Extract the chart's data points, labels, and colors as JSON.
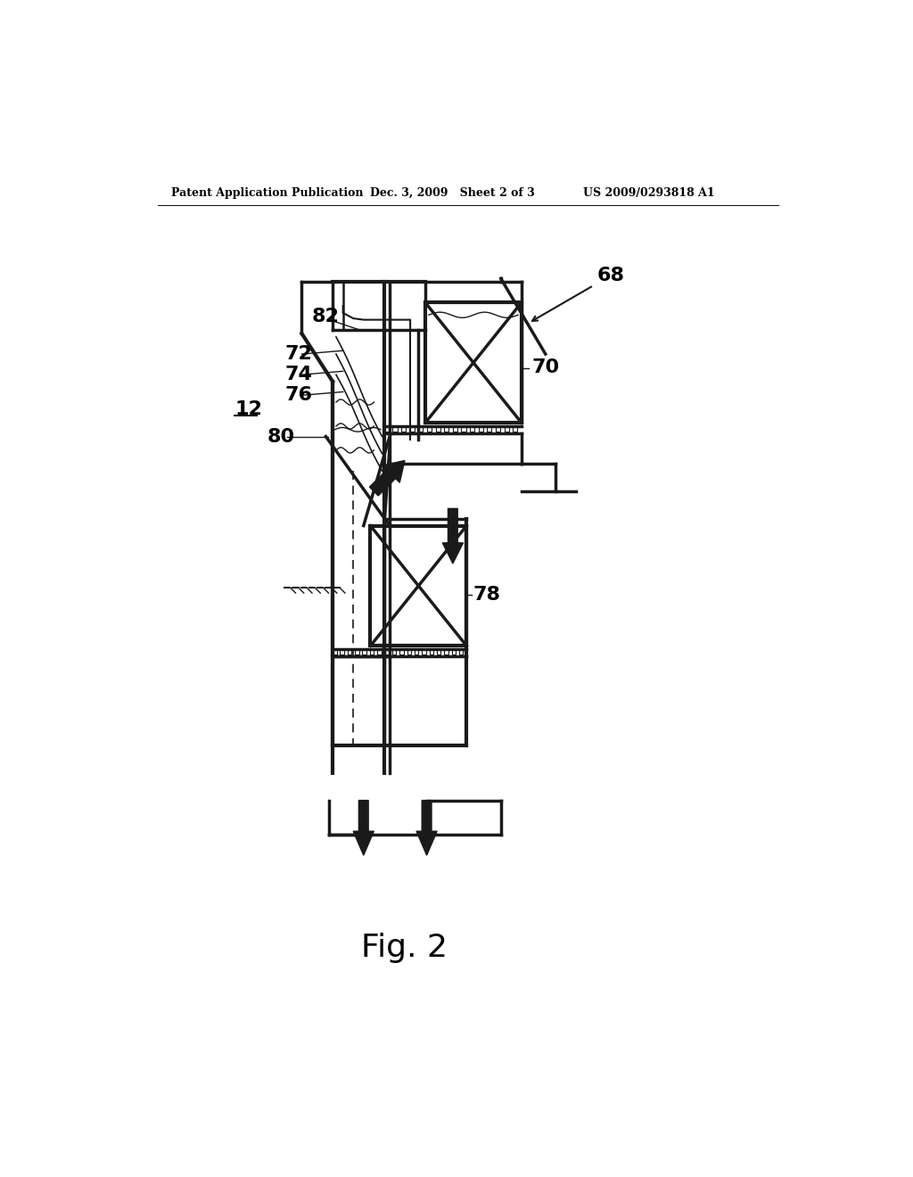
{
  "bg_color": "#ffffff",
  "line_color": "#1a1a1a",
  "header_left": "Patent Application Publication",
  "header_mid": "Dec. 3, 2009   Sheet 2 of 3",
  "header_right": "US 2009/0293818 A1",
  "fig_label": "Fig. 2"
}
